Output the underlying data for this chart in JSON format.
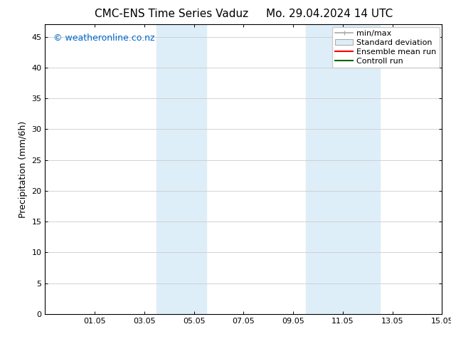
{
  "title_left": "CMC-ENS Time Series Vaduz",
  "title_right": "Mo. 29.04.2024 14 UTC",
  "ylabel": "Precipitation (mm/6h)",
  "ylim": [
    0,
    47
  ],
  "yticks": [
    0,
    5,
    10,
    15,
    20,
    25,
    30,
    35,
    40,
    45
  ],
  "xtick_labels": [
    "01.05",
    "03.05",
    "05.05",
    "07.05",
    "09.05",
    "11.05",
    "13.05",
    "15.05"
  ],
  "xtick_positions": [
    2,
    4,
    6,
    8,
    10,
    12,
    14,
    16
  ],
  "xlim": [
    0,
    16
  ],
  "shaded_regions": [
    {
      "xmin": 4.5,
      "xmax": 6.5,
      "color": "#deeef8"
    },
    {
      "xmin": 10.5,
      "xmax": 13.5,
      "color": "#deeef8"
    }
  ],
  "watermark": "© weatheronline.co.nz",
  "watermark_color": "#0066cc",
  "legend_labels": [
    "min/max",
    "Standard deviation",
    "Ensemble mean run",
    "Controll run"
  ],
  "legend_colors": [
    "#aaaaaa",
    "#deeef8",
    "#ff0000",
    "#006600"
  ],
  "bg_color": "#ffffff",
  "plot_bg_color": "#ffffff",
  "grid_color": "#cccccc",
  "title_fontsize": 11,
  "ylabel_fontsize": 9,
  "tick_fontsize": 8,
  "legend_fontsize": 8,
  "watermark_fontsize": 9
}
